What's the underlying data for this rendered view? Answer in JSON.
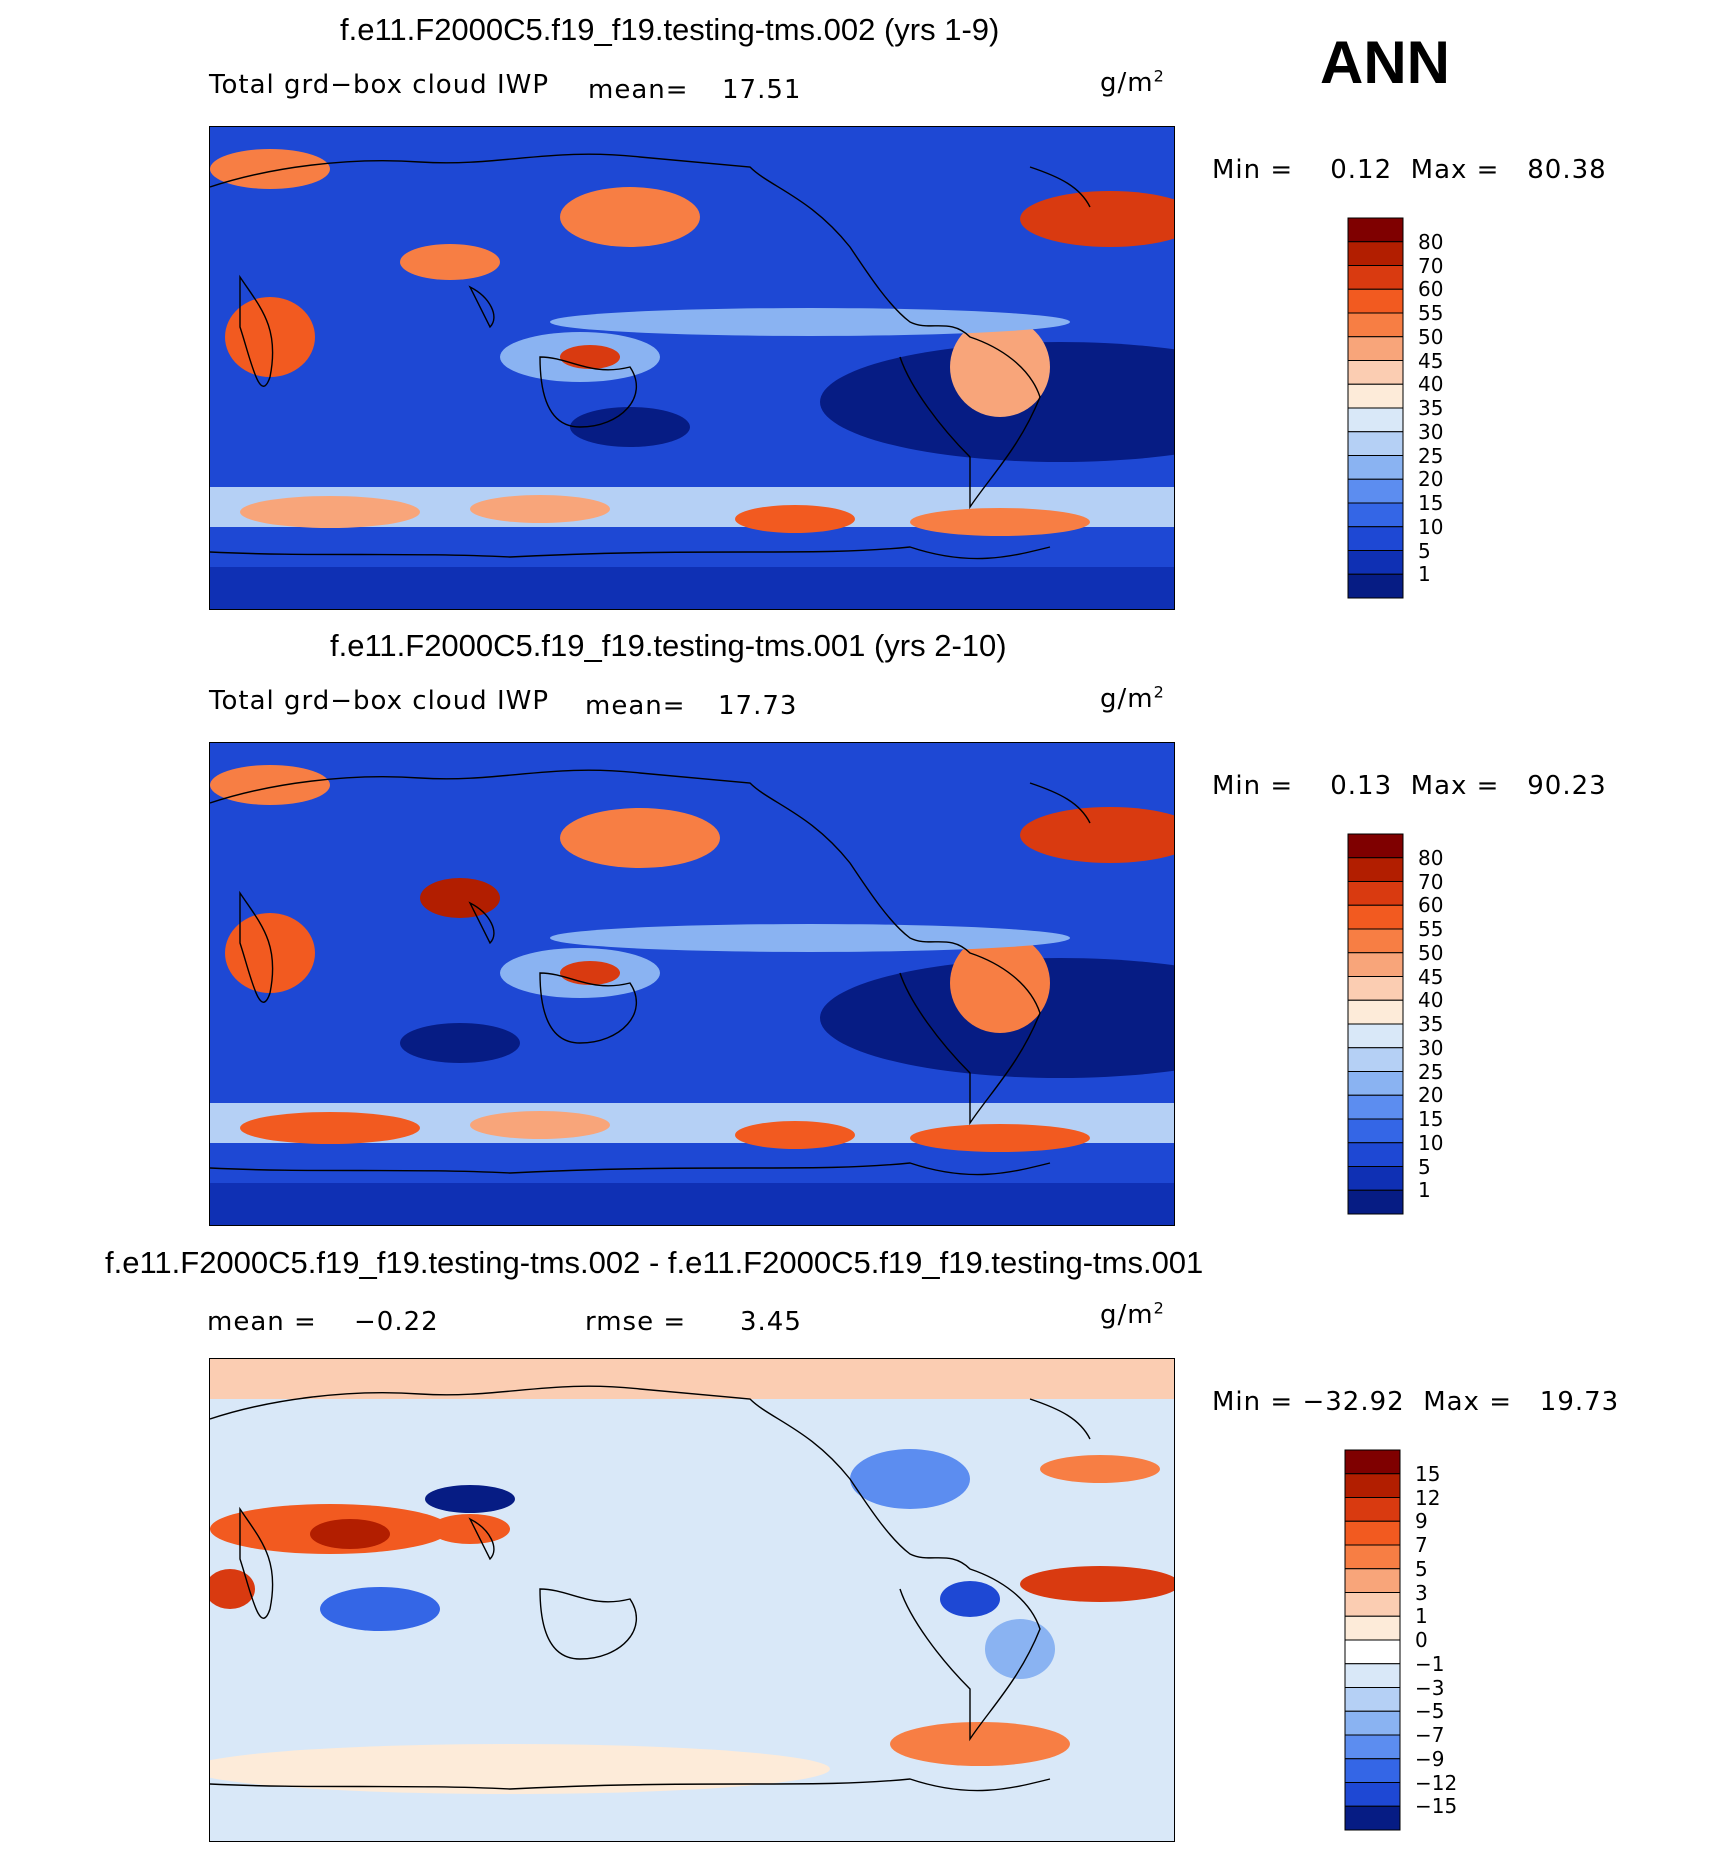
{
  "season": "ANN",
  "panels": [
    {
      "title": "f.e11.F2000C5.f19_f19.testing-tms.002 (yrs 1-9)",
      "left_label": "Total grd−box cloud IWP",
      "mean_label": "mean=",
      "mean_value": "17.51",
      "units": "g/m",
      "units_exp": "2",
      "minmax": "Min =    0.12  Max =   80.38",
      "colorbar": {
        "levels": [
          "80",
          "70",
          "60",
          "55",
          "50",
          "45",
          "40",
          "35",
          "30",
          "25",
          "20",
          "15",
          "10",
          "5",
          "1"
        ],
        "colors": [
          "#7f0000",
          "#b21e00",
          "#d93a10",
          "#f25a20",
          "#f77e44",
          "#f8a57a",
          "#fbcdb2",
          "#fdebd9",
          "#d9e8f8",
          "#b5d0f5",
          "#8ab3f2",
          "#5c8df0",
          "#3466e6",
          "#1e48d4",
          "#0f30b4",
          "#061c84"
        ]
      }
    },
    {
      "title": "f.e11.F2000C5.f19_f19.testing-tms.001 (yrs 2-10)",
      "left_label": "Total grd−box cloud IWP",
      "mean_label": "mean=",
      "mean_value": "17.73",
      "units": "g/m",
      "units_exp": "2",
      "minmax": "Min =    0.13  Max =   90.23",
      "colorbar": {
        "levels": [
          "80",
          "70",
          "60",
          "55",
          "50",
          "45",
          "40",
          "35",
          "30",
          "25",
          "20",
          "15",
          "10",
          "5",
          "1"
        ],
        "colors": [
          "#7f0000",
          "#b21e00",
          "#d93a10",
          "#f25a20",
          "#f77e44",
          "#f8a57a",
          "#fbcdb2",
          "#fdebd9",
          "#d9e8f8",
          "#b5d0f5",
          "#8ab3f2",
          "#5c8df0",
          "#3466e6",
          "#1e48d4",
          "#0f30b4",
          "#061c84"
        ]
      }
    },
    {
      "title": "f.e11.F2000C5.f19_f19.testing-tms.002 - f.e11.F2000C5.f19_f19.testing-tms.001",
      "mean_label": "mean =",
      "mean_value": "−0.22",
      "rmse_label": "rmse =",
      "rmse_value": "3.45",
      "units": "g/m",
      "units_exp": "2",
      "minmax": "Min = −32.92  Max =   19.73",
      "colorbar": {
        "levels": [
          "15",
          "12",
          "9",
          "7",
          "5",
          "3",
          "1",
          "0",
          "−1",
          "−3",
          "−5",
          "−7",
          "−9",
          "−12",
          "−15"
        ],
        "colors": [
          "#7f0000",
          "#b21e00",
          "#d93a10",
          "#f25a20",
          "#f77e44",
          "#f8a57a",
          "#fbcdb2",
          "#fdebd9",
          "#ffffff",
          "#d9e8f8",
          "#b5d0f5",
          "#8ab3f2",
          "#5c8df0",
          "#3466e6",
          "#1e48d4",
          "#061c84"
        ]
      }
    }
  ]
}
